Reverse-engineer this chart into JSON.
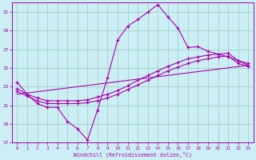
{
  "xlabel": "Windchill (Refroidissement éolien,°C)",
  "bg_color": "#cceef5",
  "grid_color": "#99ccbb",
  "line_color": "#aa00aa",
  "xlim": [
    -0.5,
    23.5
  ],
  "ylim": [
    17,
    32
  ],
  "yticks": [
    17,
    19,
    21,
    23,
    25,
    27,
    29,
    31
  ],
  "xticks": [
    0,
    1,
    2,
    3,
    4,
    5,
    6,
    7,
    8,
    9,
    10,
    11,
    12,
    13,
    14,
    15,
    16,
    17,
    18,
    19,
    20,
    21,
    22,
    23
  ],
  "line1_x": [
    0,
    1,
    2,
    3,
    4,
    5,
    6,
    7,
    8,
    9,
    10,
    11,
    12,
    13,
    14,
    15,
    16,
    17,
    18,
    19,
    20,
    21,
    22,
    23
  ],
  "line1_y": [
    23.5,
    22.2,
    21.2,
    20.8,
    20.8,
    19.3,
    18.5,
    17.3,
    20.5,
    24.0,
    28.0,
    29.5,
    30.2,
    31.0,
    31.8,
    30.5,
    29.3,
    27.2,
    27.3,
    26.8,
    26.5,
    26.2,
    25.8,
    25.3
  ],
  "line2_x": [
    0,
    1,
    2,
    3,
    4,
    5,
    6,
    7,
    8,
    9,
    10,
    11,
    12,
    13,
    14,
    15,
    16,
    17,
    18,
    19,
    20,
    21,
    22,
    23
  ],
  "line2_y": [
    22.5,
    22.0,
    21.5,
    21.2,
    21.2,
    21.2,
    21.2,
    21.3,
    21.5,
    21.8,
    22.2,
    22.7,
    23.2,
    23.7,
    24.2,
    24.7,
    25.1,
    25.5,
    25.8,
    26.0,
    26.2,
    26.3,
    25.5,
    25.2
  ],
  "line3_x": [
    0,
    1,
    2,
    3,
    4,
    5,
    6,
    7,
    8,
    9,
    10,
    11,
    12,
    13,
    14,
    15,
    16,
    17,
    18,
    19,
    20,
    21,
    22,
    23
  ],
  "line3_y": [
    22.8,
    22.2,
    21.8,
    21.5,
    21.5,
    21.5,
    21.5,
    21.6,
    21.9,
    22.2,
    22.6,
    23.1,
    23.7,
    24.2,
    24.7,
    25.2,
    25.6,
    26.0,
    26.2,
    26.4,
    26.5,
    26.6,
    25.8,
    25.5
  ],
  "line4_x": [
    0,
    23
  ],
  "line4_y": [
    22.2,
    25.3
  ]
}
